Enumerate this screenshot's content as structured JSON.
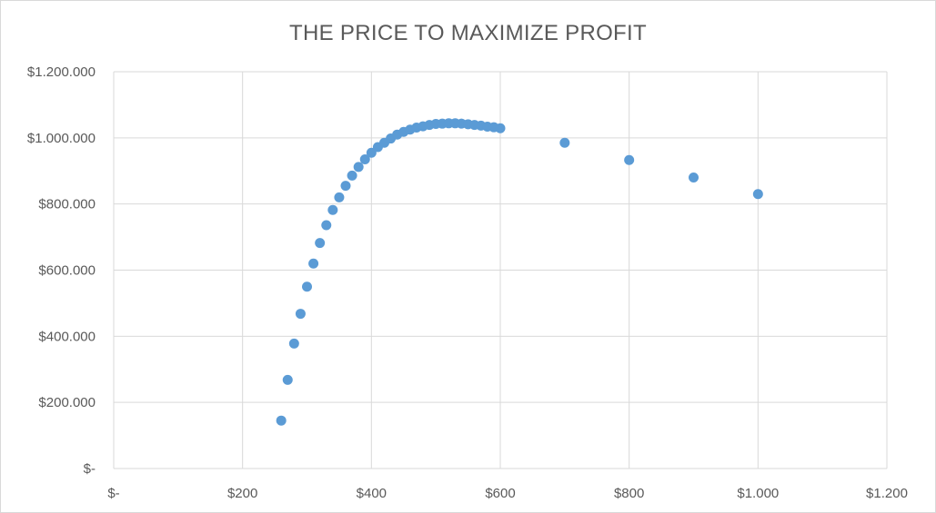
{
  "chart_data": {
    "type": "scatter",
    "title": "THE PRICE TO MAXIMIZE PROFIT",
    "xlabel": "",
    "ylabel": "",
    "xlim": [
      0,
      1200
    ],
    "ylim": [
      0,
      1200000
    ],
    "grid": true,
    "x_ticks": [
      {
        "value": 0,
        "label": "$-"
      },
      {
        "value": 200,
        "label": "$200"
      },
      {
        "value": 400,
        "label": "$400"
      },
      {
        "value": 600,
        "label": "$600"
      },
      {
        "value": 800,
        "label": "$800"
      },
      {
        "value": 1000,
        "label": "$1.000"
      },
      {
        "value": 1200,
        "label": "$1.200"
      }
    ],
    "y_ticks": [
      {
        "value": 0,
        "label": "$-"
      },
      {
        "value": 200000,
        "label": "$200.000"
      },
      {
        "value": 400000,
        "label": "$400.000"
      },
      {
        "value": 600000,
        "label": "$600.000"
      },
      {
        "value": 800000,
        "label": "$800.000"
      },
      {
        "value": 1000000,
        "label": "$1.000.000"
      },
      {
        "value": 1200000,
        "label": "$1.200.000"
      }
    ],
    "series": [
      {
        "color": "#5b9bd5",
        "x": [
          260,
          270,
          280,
          290,
          300,
          310,
          320,
          330,
          340,
          350,
          360,
          370,
          380,
          390,
          400,
          410,
          420,
          430,
          440,
          450,
          460,
          470,
          480,
          490,
          500,
          510,
          520,
          530,
          540,
          550,
          560,
          570,
          580,
          590,
          600,
          700,
          800,
          900,
          1000
        ],
        "y": [
          145000,
          268000,
          378000,
          468000,
          550000,
          620000,
          682000,
          736000,
          782000,
          820000,
          855000,
          886000,
          912000,
          935000,
          955000,
          972000,
          985000,
          998000,
          1010000,
          1018000,
          1025000,
          1031000,
          1035000,
          1039000,
          1042000,
          1043000,
          1044000,
          1044000,
          1043000,
          1041000,
          1039000,
          1037000,
          1034000,
          1032000,
          1029000,
          985000,
          933000,
          880000,
          830000
        ]
      }
    ]
  }
}
